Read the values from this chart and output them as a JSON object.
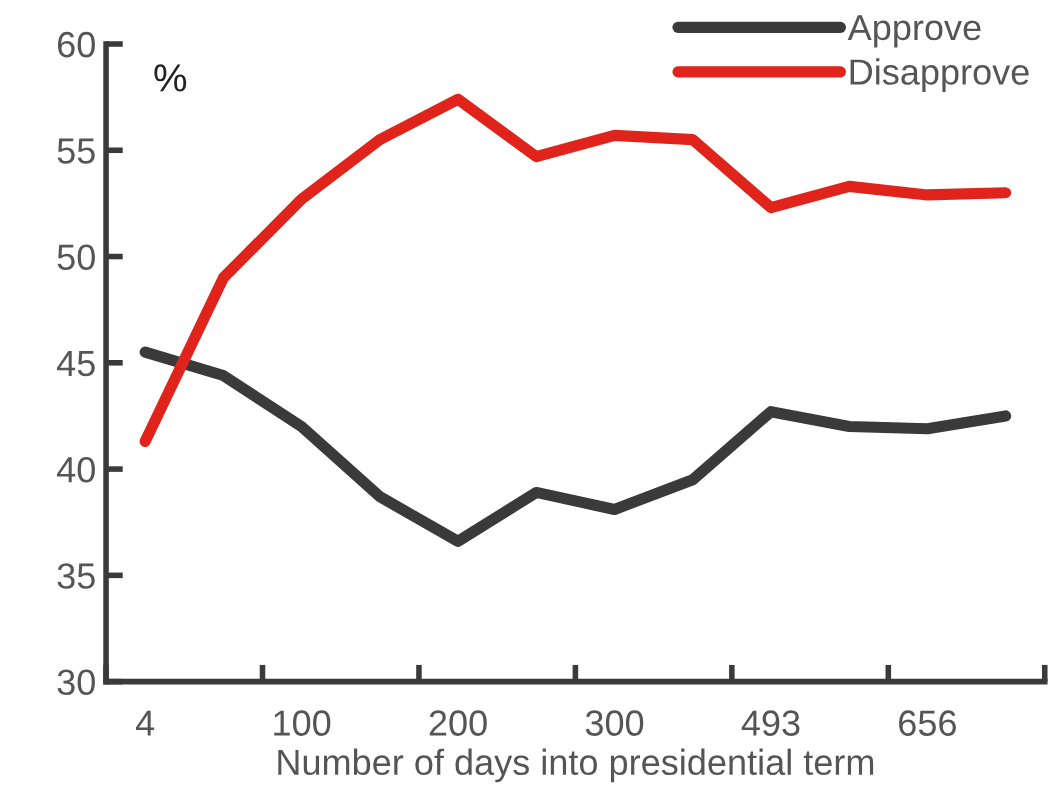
{
  "chart_data": {
    "type": "line",
    "ylabel": "%",
    "xlabel": "Number of days into presidential term",
    "categories": [
      "4",
      null,
      "100",
      null,
      "200",
      null,
      "300",
      null,
      "493",
      null,
      "656",
      null
    ],
    "series": [
      {
        "name": "Approve",
        "color": "#3a3a3a",
        "values": [
          45.5,
          44.4,
          42.0,
          38.7,
          36.6,
          38.9,
          38.1,
          39.5,
          42.7,
          42.0,
          41.9,
          42.5
        ]
      },
      {
        "name": "Disapprove",
        "color": "#e0241b",
        "values": [
          41.3,
          49.0,
          52.7,
          55.5,
          57.4,
          54.7,
          55.7,
          55.5,
          52.3,
          53.3,
          52.9,
          53.0
        ]
      }
    ],
    "ylim": [
      30,
      60
    ],
    "yticks": [
      30,
      35,
      40,
      45,
      50,
      55,
      60
    ],
    "grid": false,
    "legend": "top right",
    "marker": "none",
    "line_style": "solid"
  }
}
